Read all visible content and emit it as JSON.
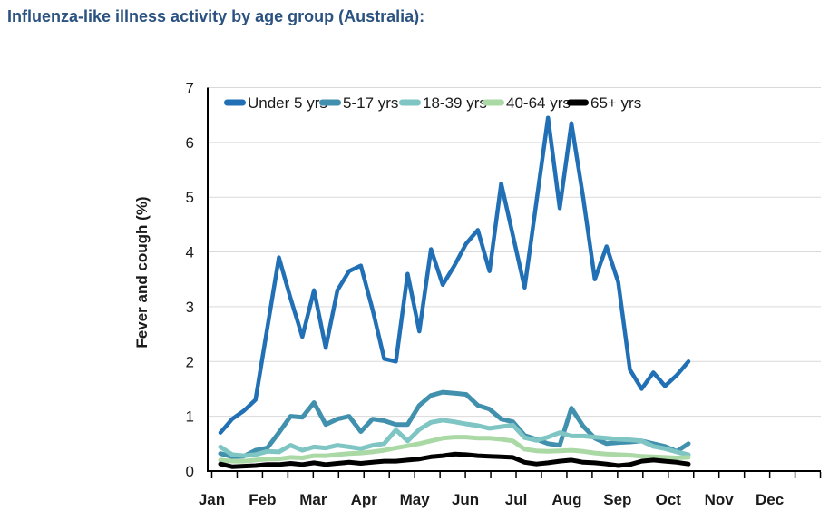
{
  "page": {
    "title": "Influenza-like illness activity by age group (Australia):"
  },
  "colors": {
    "title_text": "#2B5280",
    "axis": "#000000",
    "grid": "#D9D9D9",
    "label_text": "#1A1A1A"
  },
  "chart_data": {
    "type": "line",
    "title": "Influenza-like illness activity by age group (Australia):",
    "xlabel": "",
    "ylabel": "Fever and cough (%)",
    "x_tick_labels": [
      "Jan",
      "Feb",
      "Mar",
      "Apr",
      "May",
      "Jun",
      "Jul",
      "Aug",
      "Sep",
      "Oct",
      "Nov",
      "Dec"
    ],
    "y_ticks": [
      0,
      1,
      2,
      3,
      4,
      5,
      6,
      7
    ],
    "ylim": [
      0,
      7
    ],
    "x_note": "weekly data points from early January to late October (41 weeks); Nov-Dec empty",
    "grid": "horizontal light gray gridlines at each integer",
    "legend_position": "top inside plot area, horizontal",
    "series": [
      {
        "name": "Under 5 yrs",
        "color": "#2170B5",
        "values": [
          0.7,
          0.95,
          1.1,
          1.3,
          2.6,
          3.9,
          3.15,
          2.45,
          3.3,
          2.25,
          3.3,
          3.65,
          3.75,
          2.95,
          2.05,
          2.0,
          3.6,
          2.55,
          4.05,
          3.4,
          3.75,
          4.15,
          4.4,
          3.65,
          5.25,
          4.3,
          3.35,
          4.9,
          6.45,
          4.8,
          6.35,
          5.0,
          3.5,
          4.1,
          3.45,
          1.85,
          1.5,
          1.8,
          1.55,
          1.75,
          2.0
        ]
      },
      {
        "name": "5-17 yrs",
        "color": "#4191AE",
        "values": [
          0.32,
          0.26,
          0.27,
          0.38,
          0.42,
          0.7,
          1.0,
          0.98,
          1.25,
          0.85,
          0.95,
          1.0,
          0.72,
          0.95,
          0.92,
          0.85,
          0.85,
          1.2,
          1.38,
          1.44,
          1.42,
          1.4,
          1.2,
          1.13,
          0.95,
          0.9,
          0.65,
          0.58,
          0.5,
          0.47,
          1.15,
          0.82,
          0.6,
          0.5,
          0.52,
          0.53,
          0.55,
          0.5,
          0.45,
          0.36,
          0.5
        ]
      },
      {
        "name": "18-39 yrs",
        "color": "#7EC5C3",
        "values": [
          0.44,
          0.3,
          0.28,
          0.3,
          0.36,
          0.35,
          0.47,
          0.38,
          0.44,
          0.42,
          0.47,
          0.44,
          0.41,
          0.47,
          0.5,
          0.75,
          0.55,
          0.76,
          0.89,
          0.93,
          0.9,
          0.86,
          0.83,
          0.78,
          0.81,
          0.84,
          0.61,
          0.56,
          0.62,
          0.7,
          0.64,
          0.64,
          0.62,
          0.6,
          0.58,
          0.57,
          0.55,
          0.45,
          0.41,
          0.35,
          0.3
        ]
      },
      {
        "name": "40-64 yrs",
        "color": "#ABD9A6",
        "values": [
          0.2,
          0.18,
          0.18,
          0.2,
          0.22,
          0.22,
          0.25,
          0.24,
          0.28,
          0.28,
          0.3,
          0.32,
          0.33,
          0.35,
          0.38,
          0.42,
          0.46,
          0.5,
          0.55,
          0.6,
          0.62,
          0.62,
          0.6,
          0.6,
          0.58,
          0.55,
          0.4,
          0.37,
          0.36,
          0.37,
          0.38,
          0.36,
          0.33,
          0.31,
          0.3,
          0.29,
          0.27,
          0.26,
          0.25,
          0.24,
          0.25
        ]
      },
      {
        "name": "65+ yrs",
        "color": "#000000",
        "values": [
          0.13,
          0.08,
          0.09,
          0.1,
          0.12,
          0.12,
          0.14,
          0.12,
          0.15,
          0.12,
          0.14,
          0.16,
          0.14,
          0.16,
          0.18,
          0.18,
          0.2,
          0.22,
          0.26,
          0.28,
          0.31,
          0.3,
          0.28,
          0.27,
          0.26,
          0.25,
          0.16,
          0.13,
          0.15,
          0.18,
          0.2,
          0.16,
          0.15,
          0.13,
          0.1,
          0.12,
          0.18,
          0.2,
          0.18,
          0.16,
          0.13
        ]
      }
    ]
  }
}
